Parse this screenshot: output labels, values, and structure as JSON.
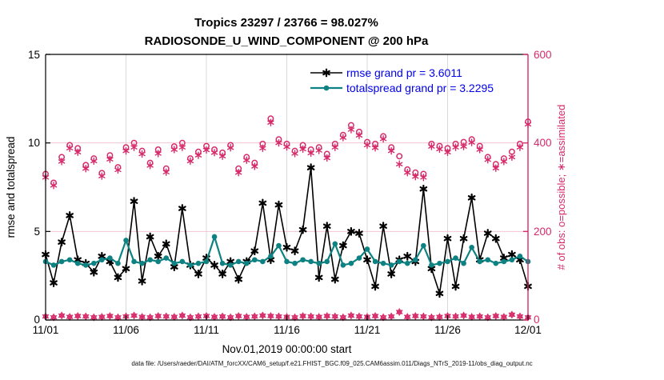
{
  "title": {
    "line1": "Tropics 23297 / 23766 = 98.027%",
    "line2": "RADIOSONDE_U_WIND_COMPONENT @ 200 hPa"
  },
  "legend": {
    "items": [
      {
        "label": "rmse grand pr = 3.6011",
        "color": "#000000",
        "marker": "asterisk"
      },
      {
        "label": "totalspread grand pr = 3.2295",
        "color": "#0e8282",
        "marker": "dot"
      }
    ],
    "position": "top-center-inside",
    "text_color": "#0000ee"
  },
  "footer": {
    "text": "data file: /Users/raeder/DAI/ATM_forcXX/CAM6_setup/f.e21.FHIST_BGC.f09_025.CAM6assim.011/Diags_NTrS_2019-11/obs_diag_output.nc"
  },
  "colors": {
    "magenta": "#d62a6a",
    "teal": "#0e8282",
    "legend_blue": "#0000ee",
    "grid_gray": "#d9d9d9",
    "grid_pink": "#f3c6d3",
    "black": "#000000"
  },
  "chart_data": {
    "type": "line",
    "title": "Tropics 23297 / 23766 = 98.027%",
    "subtitle": "RADIOSONDE_U_WIND_COMPONENT @ 200 hPa",
    "xlabel": "Nov.01,2019 00:00:00 start",
    "ylabel_left": "rmse and totalspread",
    "ylabel_right": "# of obs: o=possible; ∗=assimilated",
    "x_tick_labels": [
      "11/01",
      "11/06",
      "11/11",
      "11/16",
      "11/21",
      "11/26",
      "12/01"
    ],
    "x_range_days": 30,
    "x_tick_days": [
      0,
      5,
      10,
      15,
      20,
      25,
      30
    ],
    "grid": true,
    "ylim_left": [
      0,
      15
    ],
    "yticks_left": [
      0,
      5,
      10,
      15
    ],
    "ylim_right": [
      0,
      600
    ],
    "yticks_right": [
      0,
      200,
      400,
      600
    ],
    "series": [
      {
        "name": "rmse",
        "axis": "left",
        "color": "#000000",
        "marker": "asterisk",
        "line": true,
        "values": [
          3.7,
          2.1,
          4.4,
          5.9,
          3.4,
          3.2,
          2.7,
          3.6,
          3.3,
          2.4,
          2.9,
          6.7,
          2.2,
          4.7,
          3.6,
          4.3,
          3.0,
          6.3,
          3.1,
          2.6,
          3.5,
          3.1,
          2.6,
          3.3,
          2.3,
          3.3,
          3.9,
          6.6,
          3.4,
          6.5,
          4.1,
          3.9,
          5.1,
          8.6,
          2.4,
          5.3,
          2.3,
          4.2,
          5.0,
          4.9,
          3.4,
          1.9,
          5.3,
          2.6,
          3.4,
          3.6,
          3.3,
          7.4,
          2.9,
          1.5,
          4.6,
          1.9,
          4.6,
          6.9,
          3.4,
          4.9,
          4.6,
          3.5,
          3.7,
          3.4,
          1.9
        ]
      },
      {
        "name": "totalspread",
        "axis": "left",
        "color": "#0e8282",
        "marker": "dot",
        "line": true,
        "values": [
          3.3,
          3.1,
          3.3,
          3.4,
          3.2,
          3.1,
          3.2,
          3.4,
          3.5,
          3.2,
          4.5,
          3.3,
          3.2,
          3.4,
          3.3,
          3.5,
          3.2,
          3.3,
          3.1,
          3.2,
          3.3,
          4.7,
          3.2,
          3.1,
          3.3,
          3.2,
          3.4,
          3.3,
          3.6,
          4.2,
          3.3,
          3.2,
          3.4,
          3.3,
          3.2,
          3.3,
          4.3,
          3.1,
          3.2,
          3.5,
          4.0,
          3.3,
          3.2,
          3.1,
          3.3,
          3.2,
          3.4,
          4.2,
          3.1,
          3.2,
          3.3,
          3.5,
          3.2,
          4.1,
          3.3,
          3.4,
          3.2,
          3.3,
          3.4,
          3.6,
          3.3
        ]
      },
      {
        "name": "possible",
        "axis": "right",
        "color": "#d62a6a",
        "marker": "circle",
        "line": false,
        "values": [
          330,
          310,
          368,
          395,
          388,
          350,
          365,
          332,
          372,
          345,
          390,
          400,
          382,
          355,
          385,
          342,
          392,
          400,
          365,
          380,
          393,
          385,
          378,
          395,
          342,
          368,
          355,
          398,
          455,
          408,
          398,
          382,
          395,
          385,
          390,
          375,
          398,
          418,
          440,
          425,
          402,
          398,
          415,
          390,
          370,
          340,
          333,
          330,
          398,
          393,
          388,
          398,
          402,
          408,
          393,
          368,
          352,
          365,
          380,
          398,
          448
        ]
      },
      {
        "name": "assimilated",
        "axis": "right",
        "color": "#d62a6a",
        "marker": "asterisk",
        "line": false,
        "values": [
          322,
          304,
          358,
          388,
          379,
          342,
          359,
          325,
          363,
          339,
          382,
          390,
          375,
          349,
          376,
          334,
          385,
          390,
          359,
          372,
          384,
          378,
          370,
          389,
          333,
          361,
          347,
          388,
          446,
          400,
          391,
          376,
          386,
          377,
          383,
          366,
          390,
          412,
          430,
          417,
          395,
          389,
          409,
          382,
          352,
          333,
          324,
          322,
          392,
          386,
          379,
          390,
          392,
          401,
          385,
          362,
          343,
          358,
          368,
          390,
          442
        ]
      },
      {
        "name": "rejected (possible minus assimilated)",
        "axis": "right",
        "color": "#d62a6a",
        "marker": "circle-asterisk",
        "line": false,
        "values": [
          8,
          6,
          10,
          7,
          9,
          8,
          6,
          7,
          9,
          6,
          8,
          10,
          7,
          6,
          9,
          8,
          7,
          10,
          6,
          8,
          9,
          7,
          8,
          6,
          9,
          7,
          8,
          10,
          9,
          8,
          7,
          6,
          9,
          8,
          7,
          9,
          8,
          6,
          10,
          8,
          7,
          9,
          6,
          8,
          18,
          7,
          9,
          8,
          6,
          7,
          9,
          8,
          10,
          7,
          8,
          6,
          9,
          7,
          12,
          8,
          6
        ]
      }
    ]
  }
}
